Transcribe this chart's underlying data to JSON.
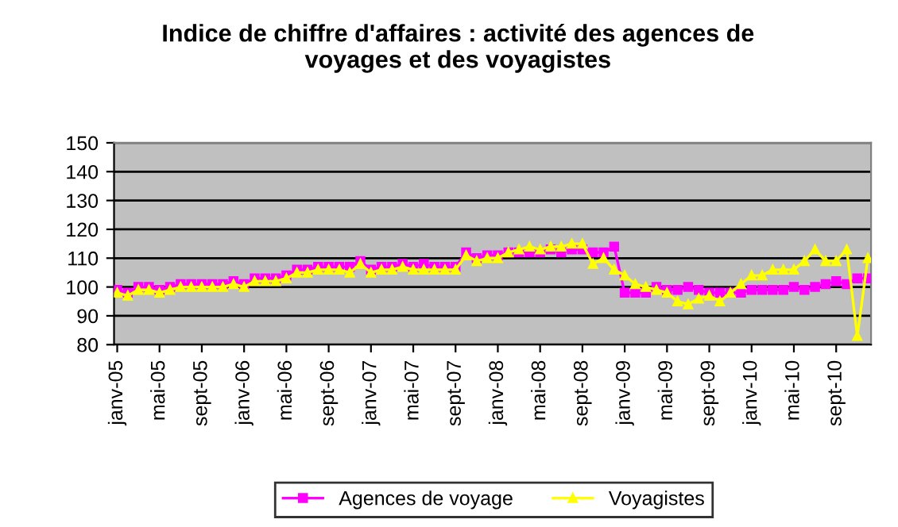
{
  "chart_data": {
    "type": "line",
    "title": "Indice de chiffre d'affaires : activité des agences de\nvoyages et des voyagistes",
    "categories": [
      "janv-05",
      null,
      null,
      null,
      "mai-05",
      null,
      null,
      null,
      "sept-05",
      null,
      null,
      null,
      "janv-06",
      null,
      null,
      null,
      "mai-06",
      null,
      null,
      null,
      "sept-06",
      null,
      null,
      null,
      "janv-07",
      null,
      null,
      null,
      "mai-07",
      null,
      null,
      null,
      "sept-07",
      null,
      null,
      null,
      "janv-08",
      null,
      null,
      null,
      "mai-08",
      null,
      null,
      null,
      "sept-08",
      null,
      null,
      null,
      "janv-09",
      null,
      null,
      null,
      "mai-09",
      null,
      null,
      null,
      "sept-09",
      null,
      null,
      null,
      "janv-10",
      null,
      null,
      null,
      "mai-10",
      null,
      null,
      null,
      "sept-10",
      null,
      null,
      null
    ],
    "series": [
      {
        "name": "Agences de voyage",
        "color": "#ff00ff",
        "marker": "square",
        "values": [
          99,
          98,
          100,
          100,
          99,
          100,
          101,
          101,
          101,
          101,
          101,
          102,
          101,
          103,
          103,
          103,
          104,
          106,
          106,
          107,
          107,
          107,
          107,
          109,
          106,
          107,
          107,
          108,
          107,
          108,
          107,
          107,
          107,
          112,
          110,
          111,
          111,
          112,
          112,
          112,
          112,
          113,
          112,
          113,
          113,
          112,
          112,
          114,
          98,
          98,
          98,
          100,
          99,
          99,
          100,
          99,
          98,
          98,
          98,
          98,
          99,
          99,
          99,
          99,
          100,
          99,
          100,
          101,
          102,
          101,
          103,
          103
        ]
      },
      {
        "name": "Voyagistes",
        "color": "#ffff00",
        "marker": "triangle",
        "values": [
          98,
          97,
          99,
          99,
          98,
          99,
          100,
          100,
          100,
          100,
          100,
          101,
          100,
          102,
          102,
          102,
          103,
          105,
          105,
          106,
          106,
          106,
          105,
          108,
          105,
          106,
          106,
          107,
          106,
          106,
          106,
          106,
          106,
          111,
          109,
          110,
          110,
          112,
          113,
          114,
          113,
          114,
          114,
          115,
          115,
          108,
          110,
          106,
          104,
          101,
          100,
          99,
          98,
          95,
          94,
          96,
          97,
          95,
          98,
          101,
          104,
          104,
          106,
          106,
          106,
          109,
          113,
          109,
          109,
          113,
          83,
          110
        ]
      }
    ],
    "ylim": [
      80,
      150
    ],
    "yticks": [
      80,
      90,
      100,
      110,
      120,
      130,
      140,
      150
    ],
    "grid": "y",
    "legend": "bottom"
  }
}
